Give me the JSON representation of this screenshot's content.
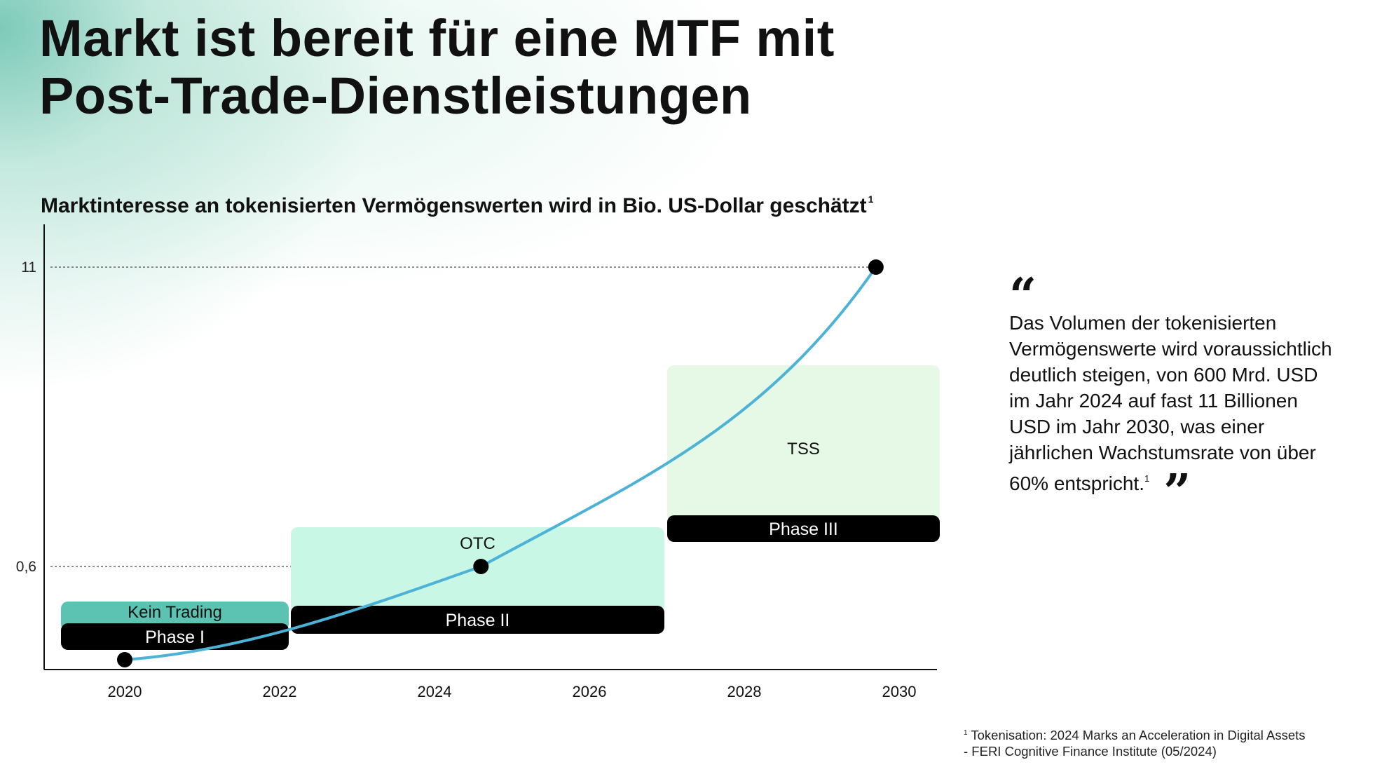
{
  "page": {
    "title_line1": "Markt ist bereit für eine MTF mit",
    "title_line2": "Post-Trade-Dienstleistungen",
    "subtitle": "Marktinteresse an tokenisierten Vermögenswerten wird in Bio. US-Dollar geschätzt",
    "subtitle_footnote_mark": "1"
  },
  "chart_data": {
    "type": "line",
    "title": "Marktinteresse an tokenisierten Vermögenswerten wird in Bio. US-Dollar geschätzt",
    "xlabel": "",
    "ylabel": "",
    "x_ticks": [
      "2020",
      "2022",
      "2024",
      "2026",
      "2028",
      "2030"
    ],
    "y_ticks": [
      "0,6",
      "11"
    ],
    "series": [
      {
        "color": "#4db3d6",
        "points": [
          {
            "x": 2020,
            "y": 0
          },
          {
            "x": 2024.6,
            "y": 0.6
          },
          {
            "x": 2029.7,
            "y": 11
          }
        ]
      }
    ],
    "reference_lines": [
      {
        "y": 0.6,
        "label": "0,6",
        "style": "dashed"
      },
      {
        "y": 11,
        "label": "11",
        "style": "dashed"
      }
    ],
    "phases": [
      {
        "phase": "Phase I",
        "label": "Kein Trading",
        "color": "#5cc3b2",
        "x_start": 2019.3,
        "x_end": 2022.1
      },
      {
        "phase": "Phase II",
        "label": "OTC",
        "color": "#c8f7e6",
        "x_start": 2022.15,
        "x_end": 2027.0
      },
      {
        "phase": "Phase III",
        "label": "TSS",
        "color": "#e6f9e6",
        "x_start": 2027.05,
        "x_end": 2030.5
      }
    ],
    "grid": false,
    "legend": "none"
  },
  "quote": {
    "open_mark": "“",
    "text": "Das Volumen der tokenisierten Vermögenswerte wird voraussichtlich deutlich steigen, von 600 Mrd. USD im Jahr 2024 auf fast 11 Billionen USD im Jahr 2030, was einer jährlichen Wachstumsrate von über 60% entspricht.",
    "footnote_mark": "1",
    "close_mark": "”"
  },
  "footnote": {
    "mark": "1",
    "line1": "Tokenisation: 2024 Marks an Acceleration in Digital Assets",
    "line2": "- FERI Cognitive Finance Institute (05/2024)"
  },
  "colors": {
    "curve": "#4db3d6",
    "phase_bar": "#000000",
    "kein_trading": "#5cc3b2",
    "otc": "#c8f7e6",
    "tss": "#e6f9e6",
    "background_glow": "#8fd1c0"
  }
}
